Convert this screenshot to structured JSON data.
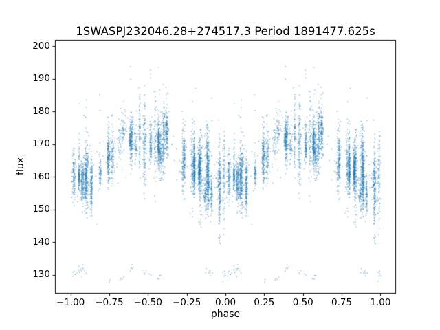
{
  "figure": {
    "title": "1SWASPJ232046.28+274517.3 Period 1891477.625s",
    "xlabel": "phase",
    "ylabel": "flux",
    "background": "#ffffff",
    "text_color": "#000000"
  },
  "chart_data": {
    "type": "scatter",
    "title": "1SWASPJ232046.28+274517.3 Period 1891477.625s",
    "xlabel": "phase",
    "ylabel": "flux",
    "grid": false,
    "legend": null,
    "marker_color": "#1f77b4",
    "marker_alpha": 0.5,
    "marker_size_px": 1.4,
    "xlim": [
      -1.1,
      1.1
    ],
    "ylim": [
      124.3,
      201.9
    ],
    "xticks": {
      "values": [
        -1.0,
        -0.75,
        -0.5,
        -0.25,
        0.0,
        0.25,
        0.5,
        0.75,
        1.0
      ],
      "labels": [
        "−1.00",
        "−0.75",
        "−0.50",
        "−0.25",
        "0.00",
        "0.25",
        "0.50",
        "0.75",
        "1.00"
      ]
    },
    "yticks": {
      "values": [
        130,
        140,
        150,
        160,
        170,
        180,
        190,
        200
      ],
      "labels": [
        "130",
        "140",
        "150",
        "160",
        "170",
        "180",
        "190",
        "200"
      ]
    },
    "description": "Phase-folded SuperWASP light curve plotted over phase −1 to +1 (data duplicated with shift −1). Dense vertical streaks of points (per-night clumps) around a double-wave mean curve, low outlier clumps near flux 127–132 and sparse high points up to ~196.",
    "mean_curve": {
      "phase": [
        0.0,
        0.05,
        0.1,
        0.15,
        0.2,
        0.25,
        0.3,
        0.35,
        0.4,
        0.45,
        0.5,
        0.55,
        0.6,
        0.65,
        0.7,
        0.75,
        0.8,
        0.85,
        0.9,
        0.95,
        1.0
      ],
      "flux": [
        158.5,
        157.5,
        158.0,
        160.0,
        163.0,
        166.0,
        168.5,
        170.0,
        171.0,
        171.5,
        171.5,
        171.0,
        170.0,
        168.0,
        166.0,
        164.5,
        163.0,
        161.0,
        159.5,
        158.0,
        158.5
      ]
    },
    "scatter_model": {
      "seed": 42,
      "n_clusters": 48,
      "points_per_cluster": [
        40,
        160
      ],
      "phase_jitter": [
        0.002,
        0.008
      ],
      "cluster_offset_sigma": 2.4,
      "within_sigma": [
        1.8,
        4.2
      ],
      "elongate_prob": 0.3,
      "elongate_factor": 1.7,
      "upper_tail_prob": 0.18,
      "upper_tail_scale": 7,
      "low_outlier_prob": 0.3,
      "low_outlier_flux": [
        127.0,
        132.5
      ],
      "low_outlier_count": [
        2,
        6
      ],
      "high_outlier_prob": 0.22,
      "high_outlier_offset": [
        12,
        26
      ],
      "high_outlier_count": [
        1,
        3
      ],
      "background_points": 140,
      "background_sigma": 5,
      "flux_clip": [
        126.5,
        196.0
      ],
      "duplicate_shift": -1
    }
  }
}
